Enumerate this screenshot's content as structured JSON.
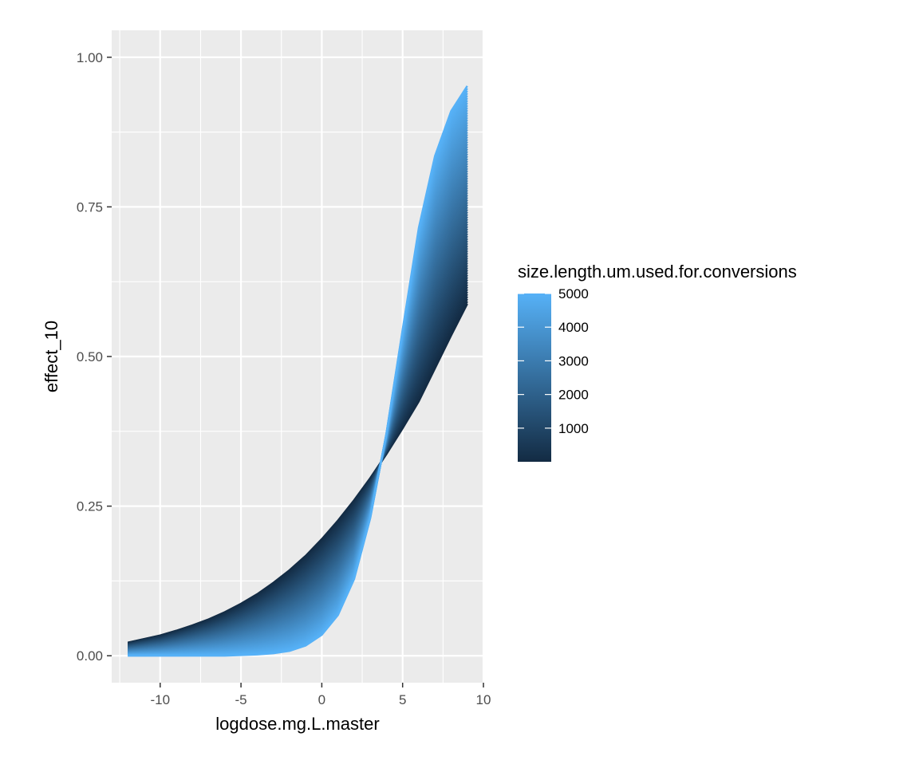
{
  "chart_data": {
    "type": "line",
    "title": "",
    "xlabel": "logdose.mg.L.master",
    "ylabel": "effect_10",
    "xlim": [
      -13,
      10
    ],
    "ylim": [
      -0.045,
      1.045
    ],
    "x_ticks": [
      -10,
      -5,
      0,
      5,
      10
    ],
    "y_ticks": [
      0.0,
      0.25,
      0.5,
      0.75,
      1.0
    ],
    "x_tick_labels": [
      "-10",
      "-5",
      "0",
      "5",
      "10"
    ],
    "y_tick_labels": [
      "0.00",
      "0.25",
      "0.50",
      "0.75",
      "1.00"
    ],
    "grid": true,
    "x": [
      -12,
      -11,
      -10,
      -9,
      -8,
      -7,
      -6,
      -5,
      -4,
      -3,
      -2,
      -1,
      0,
      1,
      2,
      3,
      4,
      5,
      6,
      7,
      8,
      9
    ],
    "series": [
      {
        "size": 1,
        "values": [
          0.022,
          0.028,
          0.034,
          0.042,
          0.051,
          0.061,
          0.073,
          0.087,
          0.103,
          0.122,
          0.143,
          0.167,
          0.195,
          0.226,
          0.26,
          0.297,
          0.337,
          0.38,
          0.425,
          0.48,
          0.535,
          0.588
        ]
      },
      {
        "size": 5000,
        "values": [
          0.0,
          0.0,
          0.0,
          0.0,
          0.0,
          0.0,
          0.0,
          0.001,
          0.002,
          0.004,
          0.008,
          0.017,
          0.035,
          0.068,
          0.128,
          0.23,
          0.372,
          0.545,
          0.715,
          0.835,
          0.91,
          0.952
        ]
      }
    ],
    "colour_scale": {
      "title": "size.length.um.used.for.conversions",
      "min": 1,
      "max": 5000,
      "breaks": [
        1000,
        2000,
        3000,
        4000,
        5000
      ],
      "break_labels": [
        "1000",
        "2000",
        "3000",
        "4000",
        "5000"
      ],
      "low_colour": "#132B43",
      "high_colour": "#56B1F7",
      "legend_position": "right"
    },
    "panel_background": "#EBEBEB",
    "grid_colour": "#FFFFFF"
  }
}
